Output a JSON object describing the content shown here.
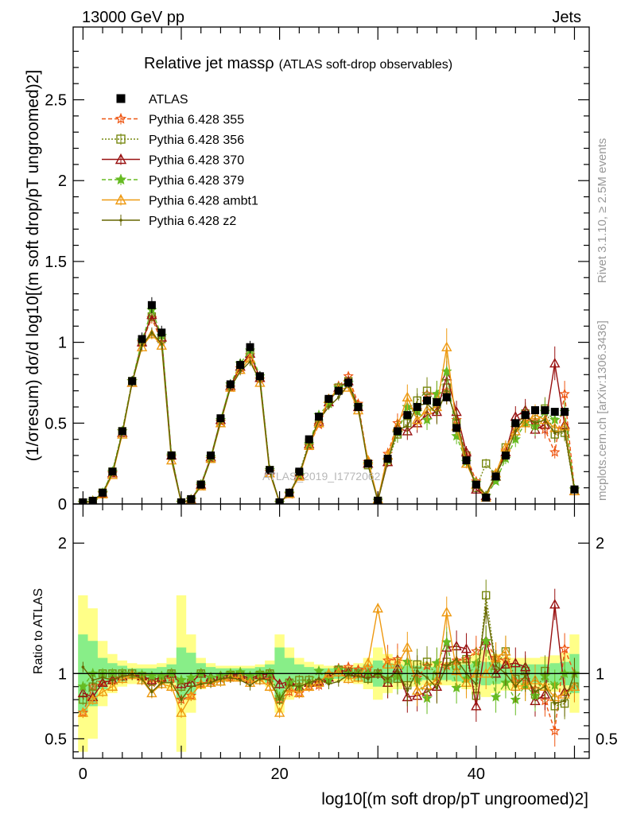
{
  "header": {
    "energy": "13000 GeV pp",
    "category": "Jets",
    "title": "Relative jet massρ",
    "subtitle": "(ATLAS soft-drop observables)",
    "rivet_label": "Rivet 3.1.10, ≥ 2.5M events",
    "mcplots_label": "mcplots.cern.ch [arXiv:1306.3436]",
    "analysis_watermark": "ATLAS_2019_I1772062"
  },
  "axes": {
    "main_ylabel": "(1/σresum) dσ/d log10[(m soft drop/pT ungroomed)2]",
    "ratio_ylabel": "Ratio to ATLAS",
    "xlabel": "log10[(m soft drop/pT ungroomed)2]"
  },
  "chart_data": [
    {
      "type": "line",
      "panel": "main",
      "xlim": [
        -1,
        51.5
      ],
      "ylim": [
        0,
        2.95
      ],
      "xticks": [
        0,
        20,
        40
      ],
      "yticks": [
        0,
        0.5,
        1,
        1.5,
        2,
        2.5
      ],
      "ytick_labels": [
        "0",
        "0.5",
        "1",
        "1.5",
        "2",
        "2.5"
      ],
      "x": [
        0,
        1,
        2,
        3,
        4,
        5,
        6,
        7,
        8,
        9,
        10,
        11,
        12,
        13,
        14,
        15,
        16,
        17,
        18,
        19,
        20,
        21,
        22,
        23,
        24,
        25,
        26,
        27,
        28,
        29,
        30,
        31,
        32,
        33,
        34,
        35,
        36,
        37,
        38,
        39,
        40,
        41,
        42,
        43,
        44,
        45,
        46,
        47,
        48,
        49,
        50
      ],
      "legend_position": "top-left",
      "series": [
        {
          "name": "ATLAS",
          "style": "marker",
          "marker": "square-filled",
          "color": "#000000",
          "values": [
            0.01,
            0.02,
            0.07,
            0.2,
            0.45,
            0.76,
            1.02,
            1.23,
            1.06,
            0.3,
            0.01,
            0.03,
            0.12,
            0.3,
            0.53,
            0.74,
            0.86,
            0.97,
            0.79,
            0.21,
            0.01,
            0.07,
            0.2,
            0.4,
            0.54,
            0.65,
            0.7,
            0.75,
            0.6,
            0.25,
            0.02,
            0.28,
            0.45,
            0.55,
            0.6,
            0.64,
            0.63,
            0.66,
            0.47,
            0.27,
            0.12,
            0.04,
            0.17,
            0.3,
            0.5,
            0.55,
            0.58,
            0.58,
            0.57,
            0.57,
            0.09
          ]
        },
        {
          "name": "Pythia 6.428 355",
          "style": "dashed",
          "marker": "star-open",
          "color": "#ee5511",
          "values": [
            0.007,
            0.02,
            0.065,
            0.19,
            0.45,
            0.76,
            1.0,
            1.15,
            1.0,
            0.29,
            0.008,
            0.025,
            0.11,
            0.28,
            0.51,
            0.72,
            0.84,
            0.92,
            0.77,
            0.2,
            0.008,
            0.06,
            0.17,
            0.36,
            0.49,
            0.62,
            0.73,
            0.79,
            0.62,
            0.26,
            0.02,
            0.31,
            0.5,
            0.6,
            0.58,
            0.68,
            0.68,
            0.7,
            0.52,
            0.3,
            0.14,
            0.05,
            0.19,
            0.33,
            0.47,
            0.52,
            0.51,
            0.46,
            0.32,
            0.68,
            0.09
          ]
        },
        {
          "name": "Pythia 6.428 356",
          "style": "dotted",
          "marker": "square-open",
          "color": "#778811",
          "values": [
            0.008,
            0.018,
            0.07,
            0.2,
            0.45,
            0.76,
            1.0,
            1.16,
            1.02,
            0.3,
            0.009,
            0.028,
            0.12,
            0.28,
            0.5,
            0.73,
            0.85,
            0.93,
            0.78,
            0.21,
            0.008,
            0.065,
            0.19,
            0.38,
            0.5,
            0.64,
            0.72,
            0.76,
            0.6,
            0.24,
            0.02,
            0.26,
            0.43,
            0.5,
            0.64,
            0.7,
            0.62,
            0.72,
            0.5,
            0.3,
            0.1,
            0.25,
            0.18,
            0.35,
            0.48,
            0.56,
            0.49,
            0.59,
            0.43,
            0.44,
            0.08
          ]
        },
        {
          "name": "Pythia 6.428 370",
          "style": "solid",
          "marker": "triangle-open",
          "color": "#991111",
          "values": [
            0.007,
            0.018,
            0.065,
            0.19,
            0.44,
            0.75,
            1.0,
            1.17,
            1.03,
            0.3,
            0.009,
            0.028,
            0.12,
            0.29,
            0.52,
            0.73,
            0.85,
            0.93,
            0.78,
            0.21,
            0.009,
            0.066,
            0.18,
            0.37,
            0.51,
            0.63,
            0.72,
            0.76,
            0.6,
            0.25,
            0.02,
            0.26,
            0.47,
            0.45,
            0.5,
            0.55,
            0.57,
            0.79,
            0.57,
            0.32,
            0.09,
            0.05,
            0.17,
            0.32,
            0.54,
            0.58,
            0.46,
            0.49,
            0.87,
            0.49,
            0.08
          ]
        },
        {
          "name": "Pythia 6.428 379",
          "style": "dashed",
          "marker": "star-filled",
          "color": "#66bb22",
          "values": [
            0.008,
            0.02,
            0.07,
            0.2,
            0.45,
            0.76,
            1.01,
            1.2,
            1.04,
            0.3,
            0.009,
            0.029,
            0.12,
            0.29,
            0.52,
            0.74,
            0.87,
            0.95,
            0.79,
            0.21,
            0.008,
            0.065,
            0.18,
            0.37,
            0.55,
            0.62,
            0.72,
            0.75,
            0.6,
            0.25,
            0.02,
            0.27,
            0.44,
            0.6,
            0.57,
            0.52,
            0.68,
            0.82,
            0.42,
            0.26,
            0.13,
            0.05,
            0.14,
            0.28,
            0.4,
            0.5,
            0.48,
            0.57,
            0.52,
            0.57,
            0.09
          ]
        },
        {
          "name": "Pythia 6.428 ambt1",
          "style": "solid",
          "marker": "triangle-open",
          "color": "#ee9911",
          "values": [
            0.007,
            0.016,
            0.06,
            0.18,
            0.43,
            0.75,
            0.97,
            1.05,
            0.98,
            0.27,
            0.007,
            0.025,
            0.11,
            0.28,
            0.5,
            0.72,
            0.83,
            0.9,
            0.75,
            0.19,
            0.007,
            0.062,
            0.17,
            0.36,
            0.5,
            0.65,
            0.71,
            0.72,
            0.58,
            0.27,
            0.03,
            0.3,
            0.48,
            0.66,
            0.52,
            0.58,
            0.6,
            0.97,
            0.48,
            0.25,
            0.12,
            0.04,
            0.19,
            0.35,
            0.45,
            0.5,
            0.55,
            0.52,
            0.47,
            0.48,
            0.08
          ]
        },
        {
          "name": "Pythia 6.428 z2",
          "style": "solid",
          "marker": "dot",
          "color": "#666600",
          "values": [
            0.008,
            0.019,
            0.068,
            0.19,
            0.44,
            0.75,
            0.98,
            1.06,
            0.99,
            0.28,
            0.008,
            0.027,
            0.11,
            0.28,
            0.51,
            0.72,
            0.82,
            0.88,
            0.76,
            0.2,
            0.008,
            0.064,
            0.18,
            0.37,
            0.52,
            0.6,
            0.66,
            0.74,
            0.59,
            0.24,
            0.02,
            0.27,
            0.46,
            0.48,
            0.61,
            0.62,
            0.56,
            0.7,
            0.52,
            0.27,
            0.11,
            0.06,
            0.18,
            0.3,
            0.45,
            0.54,
            0.5,
            0.52,
            0.44,
            0.45,
            0.09
          ]
        }
      ]
    },
    {
      "type": "line",
      "panel": "ratio",
      "xlim": [
        -1,
        51.5
      ],
      "ylim": [
        0.35,
        2.3
      ],
      "yticks": [
        0.5,
        1,
        2
      ],
      "ytick_labels": [
        "0.5",
        "1",
        "2"
      ],
      "xticks": [
        0,
        20,
        40
      ],
      "xtick_labels": [
        "0",
        "20",
        "40"
      ],
      "reference": 1,
      "band_inner_color": "#88ee88",
      "band_outer_color": "#ffff88",
      "band_x": [
        0,
        1,
        2,
        3,
        4,
        5,
        6,
        7,
        8,
        9,
        10,
        11,
        12,
        13,
        14,
        15,
        16,
        17,
        18,
        19,
        20,
        21,
        22,
        23,
        24,
        25,
        26,
        27,
        28,
        29,
        30,
        31,
        32,
        33,
        34,
        35,
        36,
        37,
        38,
        39,
        40,
        41,
        42,
        43,
        44,
        45,
        46,
        47,
        48,
        49,
        50
      ],
      "band_inner": [
        0.3,
        0.25,
        0.12,
        0.08,
        0.06,
        0.04,
        0.04,
        0.04,
        0.05,
        0.07,
        0.2,
        0.16,
        0.08,
        0.05,
        0.04,
        0.04,
        0.04,
        0.04,
        0.05,
        0.07,
        0.2,
        0.12,
        0.07,
        0.05,
        0.04,
        0.04,
        0.04,
        0.04,
        0.05,
        0.07,
        0.1,
        0.08,
        0.07,
        0.06,
        0.06,
        0.05,
        0.05,
        0.05,
        0.06,
        0.07,
        0.08,
        0.09,
        0.08,
        0.07,
        0.07,
        0.07,
        0.07,
        0.07,
        0.08,
        0.09,
        0.15
      ],
      "band_outer": [
        0.6,
        0.5,
        0.25,
        0.15,
        0.1,
        0.08,
        0.07,
        0.07,
        0.08,
        0.12,
        0.6,
        0.3,
        0.12,
        0.08,
        0.06,
        0.06,
        0.06,
        0.06,
        0.07,
        0.1,
        0.3,
        0.2,
        0.12,
        0.09,
        0.07,
        0.06,
        0.06,
        0.06,
        0.08,
        0.12,
        0.2,
        0.15,
        0.12,
        0.1,
        0.1,
        0.09,
        0.09,
        0.09,
        0.1,
        0.12,
        0.16,
        0.18,
        0.15,
        0.13,
        0.12,
        0.12,
        0.12,
        0.13,
        0.14,
        0.16,
        0.3
      ],
      "series": [
        {
          "name": "Pythia 6.428 355",
          "color": "#ee5511",
          "values": [
            0.7,
            0.9,
            0.93,
            0.95,
            1.0,
            1.0,
            0.98,
            0.93,
            0.95,
            0.97,
            0.8,
            0.83,
            0.92,
            0.94,
            0.96,
            0.97,
            0.98,
            0.95,
            0.97,
            0.95,
            0.8,
            0.86,
            0.85,
            0.9,
            0.91,
            0.95,
            1.04,
            1.05,
            1.03,
            1.04,
            1.0,
            1.1,
            1.11,
            1.09,
            0.97,
            1.06,
            1.08,
            1.06,
            1.1,
            1.11,
            1.17,
            1.25,
            1.12,
            1.1,
            0.94,
            0.95,
            0.88,
            0.79,
            0.56,
            1.19,
            1.0
          ]
        },
        {
          "name": "Pythia 6.428 356",
          "color": "#778811",
          "values": [
            0.8,
            0.9,
            1.0,
            1.0,
            1.0,
            1.0,
            0.98,
            0.94,
            0.96,
            1.0,
            0.9,
            0.93,
            1.0,
            0.93,
            0.94,
            0.99,
            0.99,
            0.96,
            0.99,
            1.0,
            0.8,
            0.93,
            0.95,
            0.95,
            0.93,
            0.98,
            1.03,
            1.01,
            1.0,
            0.96,
            1.0,
            0.93,
            0.96,
            0.91,
            1.07,
            1.09,
            0.98,
            1.09,
            1.06,
            1.11,
            0.83,
            1.6,
            1.06,
            1.17,
            0.96,
            1.02,
            0.84,
            1.02,
            0.75,
            0.77,
            0.9
          ]
        },
        {
          "name": "Pythia 6.428 370",
          "color": "#991111",
          "values": [
            0.85,
            0.82,
            0.93,
            0.95,
            0.98,
            0.99,
            0.98,
            0.95,
            0.97,
            1.0,
            0.92,
            0.93,
            1.0,
            0.97,
            0.98,
            0.99,
            0.99,
            0.96,
            0.99,
            1.0,
            0.92,
            0.94,
            0.9,
            0.93,
            0.94,
            0.97,
            1.03,
            1.01,
            1.0,
            1.0,
            1.0,
            0.93,
            1.04,
            0.82,
            0.83,
            0.86,
            0.9,
            1.2,
            1.21,
            1.19,
            0.75,
            1.25,
            1.0,
            1.07,
            1.08,
            1.05,
            0.79,
            0.84,
            1.53,
            0.86,
            0.9
          ]
        },
        {
          "name": "Pythia 6.428 379",
          "color": "#66bb22",
          "values": [
            0.9,
            1.0,
            1.0,
            1.0,
            1.0,
            1.0,
            0.99,
            0.98,
            0.98,
            1.0,
            0.95,
            0.97,
            1.0,
            0.97,
            0.98,
            1.0,
            1.01,
            0.98,
            1.0,
            1.0,
            0.82,
            0.93,
            0.9,
            0.93,
            1.02,
            0.95,
            1.03,
            1.0,
            1.0,
            1.0,
            1.0,
            0.96,
            0.98,
            1.09,
            0.95,
            0.81,
            1.08,
            1.24,
            0.89,
            0.96,
            1.08,
            1.25,
            0.82,
            0.93,
            0.8,
            0.91,
            0.83,
            0.98,
            0.91,
            1.0,
            1.0
          ]
        },
        {
          "name": "Pythia 6.428 ambt1",
          "color": "#ee9911",
          "values": [
            0.7,
            0.8,
            0.86,
            0.9,
            0.96,
            0.99,
            0.95,
            0.85,
            0.92,
            0.9,
            0.7,
            0.83,
            0.92,
            0.93,
            0.94,
            0.97,
            0.97,
            0.93,
            0.95,
            0.9,
            0.7,
            0.89,
            0.85,
            0.9,
            0.93,
            1.0,
            1.01,
            0.96,
            0.97,
            1.08,
            1.5,
            1.07,
            1.07,
            1.2,
            0.87,
            0.91,
            0.95,
            1.47,
            1.02,
            0.93,
            1.0,
            1.0,
            1.12,
            1.17,
            0.9,
            0.91,
            0.95,
            0.9,
            0.82,
            0.84,
            0.9
          ]
        },
        {
          "name": "Pythia 6.428 z2",
          "color": "#666600",
          "values": [
            1.05,
            0.95,
            0.97,
            0.95,
            0.98,
            0.99,
            0.96,
            0.86,
            0.93,
            0.93,
            0.8,
            0.9,
            0.92,
            0.93,
            0.96,
            0.97,
            0.95,
            0.91,
            0.96,
            0.95,
            0.8,
            0.91,
            0.9,
            0.93,
            0.96,
            0.92,
            0.94,
            0.99,
            0.98,
            0.96,
            1.0,
            0.96,
            1.02,
            0.87,
            1.02,
            0.97,
            0.89,
            1.06,
            1.11,
            1.0,
            0.92,
            1.5,
            1.06,
            1.0,
            0.9,
            0.98,
            0.86,
            0.9,
            0.77,
            0.79,
            1.0
          ]
        }
      ]
    }
  ]
}
